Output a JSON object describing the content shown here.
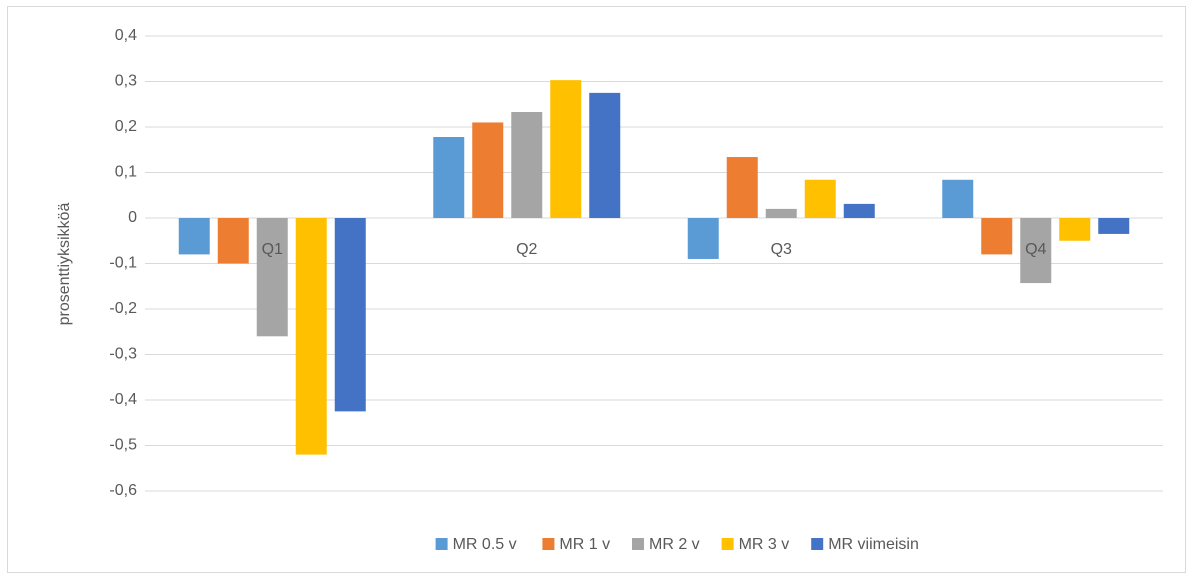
{
  "chart_data": {
    "type": "bar",
    "y_label": "prosenttiyksikköä",
    "categories": [
      "Q1",
      "Q2",
      "Q3",
      "Q4"
    ],
    "series": [
      {
        "name": "MR 0.5 v",
        "color": "#5b9bd5",
        "values": [
          -0.08,
          0.178,
          -0.09,
          0.084
        ]
      },
      {
        "name": "MR 1 v",
        "color": "#ed7d31",
        "values": [
          -0.1,
          0.21,
          0.134,
          -0.08
        ]
      },
      {
        "name": "MR 2 v",
        "color": "#a5a5a5",
        "values": [
          -0.26,
          0.233,
          0.02,
          -0.143
        ]
      },
      {
        "name": "MR 3 v",
        "color": "#ffc000",
        "values": [
          -0.52,
          0.303,
          0.084,
          -0.05
        ]
      },
      {
        "name": "MR viimeisin",
        "color": "#4472c4",
        "values": [
          -0.425,
          0.275,
          0.031,
          -0.035
        ]
      }
    ],
    "ylim": [
      -0.6,
      0.4
    ],
    "yticks": [
      {
        "value": -0.6,
        "label": "-0,6"
      },
      {
        "value": -0.5,
        "label": "-0,5"
      },
      {
        "value": -0.4,
        "label": "-0,4"
      },
      {
        "value": -0.3,
        "label": "-0,3"
      },
      {
        "value": -0.2,
        "label": "-0,2"
      },
      {
        "value": -0.1,
        "label": "-0,1"
      },
      0,
      {
        "value": 0.1,
        "label": "0,1"
      },
      {
        "value": 0.2,
        "label": "0,2"
      },
      {
        "value": 0.3,
        "label": "0,3"
      },
      {
        "value": 0.4,
        "label": "0,4"
      }
    ],
    "grid": true,
    "legend": "bottom"
  }
}
